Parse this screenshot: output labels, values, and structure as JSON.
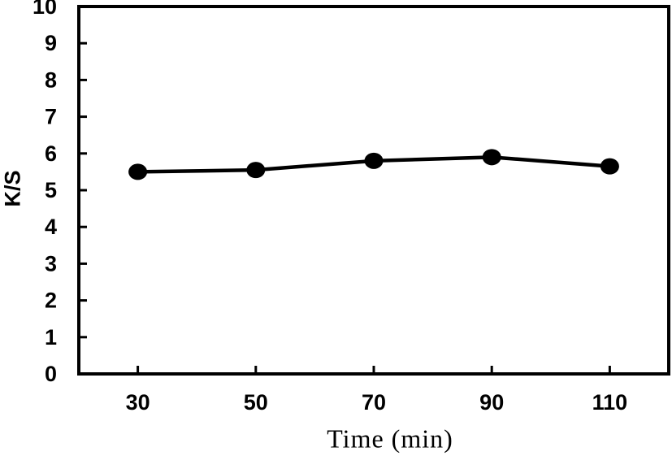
{
  "chart_data": {
    "type": "line",
    "title": "",
    "xlabel": "Time (min)",
    "ylabel": "K/S",
    "x": [
      30,
      50,
      70,
      90,
      110
    ],
    "series": [
      {
        "name": "K/S",
        "values": [
          5.5,
          5.55,
          5.8,
          5.9,
          5.65
        ],
        "color": "#000000",
        "marker": "filled-circle"
      }
    ],
    "x_ticks": [
      30,
      50,
      70,
      90,
      110
    ],
    "y_ticks": [
      0,
      1,
      2,
      3,
      4,
      5,
      6,
      7,
      8,
      9,
      10
    ],
    "xlim": [
      20,
      120
    ],
    "ylim": [
      0,
      10
    ],
    "grid": false,
    "legend": "none",
    "frame_color": "#000000",
    "tick_label_color": "#000000",
    "background": "#ffffff"
  }
}
